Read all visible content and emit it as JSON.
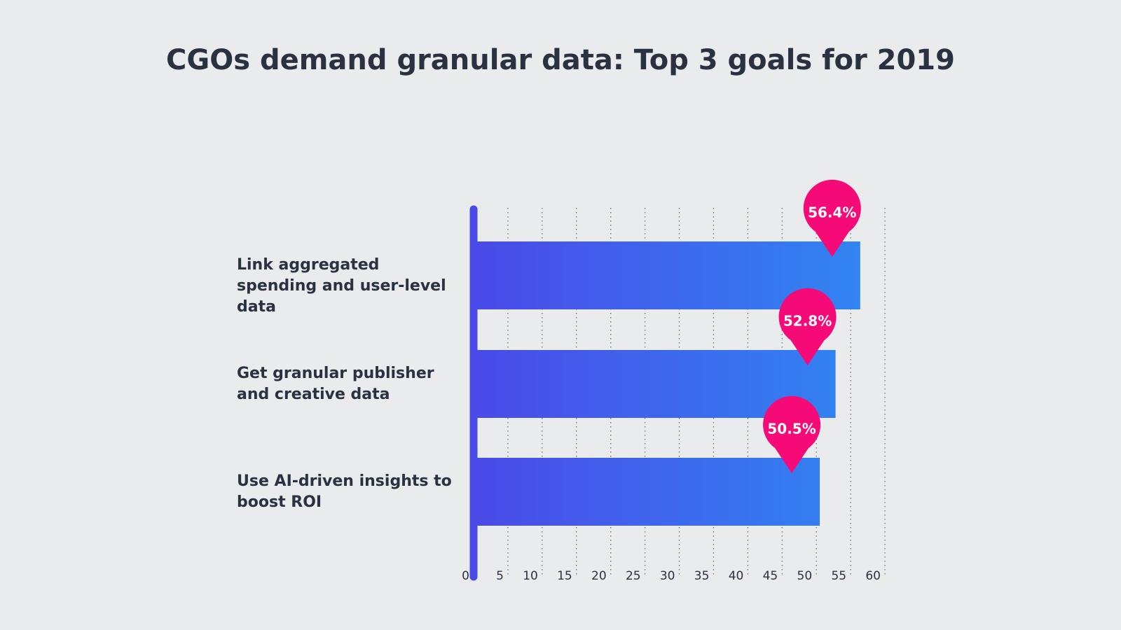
{
  "chart_data": {
    "type": "bar",
    "orientation": "horizontal",
    "title": "CGOs demand granular data: Top 3 goals for 2019",
    "categories": [
      "Link aggregated spending and user-level data",
      "Get granular publisher and creative data",
      "Use AI-driven insights to boost ROI"
    ],
    "values": [
      56.4,
      52.8,
      50.5
    ],
    "value_labels": [
      "56.4%",
      "52.8%",
      "50.5%"
    ],
    "colors": [
      "#4a4ae8",
      "#2f88f2"
    ],
    "label_color": "#f50a78",
    "xlim": [
      0,
      60
    ],
    "xticks": [
      0,
      5,
      10,
      15,
      20,
      25,
      30,
      35,
      40,
      45,
      50,
      55,
      60
    ],
    "grid": true
  }
}
